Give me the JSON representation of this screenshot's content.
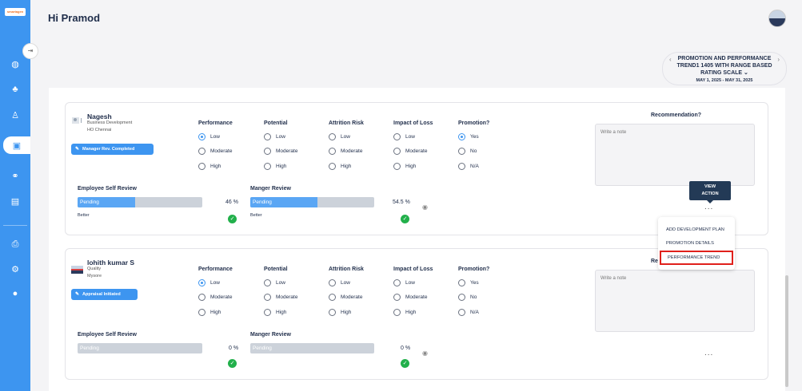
{
  "app": {
    "logo_text": "smartagen"
  },
  "header": {
    "greeting": "Hi Pramod"
  },
  "cycle": {
    "title": "PROMOTION AND PERFORMANCE TREND1 1405 WITH RANGE BASED RATING SCALE",
    "dates": "MAY 1, 2025 - MAY 31, 2025"
  },
  "sidebar": {
    "items": [
      {
        "icon": "globe-icon"
      },
      {
        "icon": "team-icon"
      },
      {
        "icon": "org-icon"
      },
      {
        "icon": "review-icon",
        "active": true
      },
      {
        "icon": "handshake-icon"
      },
      {
        "icon": "document-icon"
      },
      {
        "icon": "printer-icon"
      },
      {
        "icon": "gear-icon"
      },
      {
        "icon": "user-icon"
      }
    ]
  },
  "questions": {
    "performance": "Performance",
    "potential": "Potential",
    "attrition": "Attrition Risk",
    "impact": "Impact of Loss",
    "promotion": "Promotion?",
    "levels": [
      "Low",
      "Moderate",
      "High"
    ],
    "promo_opts": [
      "Yes",
      "No",
      "N/A"
    ]
  },
  "labels": {
    "self_review": "Employee Self Review",
    "manager_review": "Manger Review",
    "recommendation": "Recommendation?",
    "recommendation_partial": "Re",
    "note_placeholder": "Write a note",
    "pending": "Pending",
    "more": "...",
    "view_action": [
      "VIEW",
      "ACTION"
    ]
  },
  "employees": [
    {
      "name": "Nagesh",
      "dept": "Business Development",
      "location": "HO Chennai",
      "status": "Manager Rev. Completed",
      "self_pct": "46 %",
      "self_fill": 0.46,
      "self_rating": "Better",
      "mgr_pct": "54.5 %",
      "mgr_fill": 0.545,
      "mgr_rating": "Better"
    },
    {
      "name": "lohith kumar S",
      "dept": "Quality",
      "location": "Mysore",
      "status": "Appraisal Initiated",
      "self_pct": "0 %",
      "self_fill": 0,
      "self_rating": "",
      "mgr_pct": "0 %",
      "mgr_fill": 0,
      "mgr_rating": ""
    }
  ],
  "menu": {
    "items": [
      "ADD DEVELOPMENT PLAN",
      "PROMOTION DETAILS",
      "PERFORMANCE TREND"
    ]
  },
  "colors": {
    "primary": "#3d95f0",
    "success": "#22b04b",
    "highlight": "#e0201b",
    "tooltip": "#233a56"
  }
}
